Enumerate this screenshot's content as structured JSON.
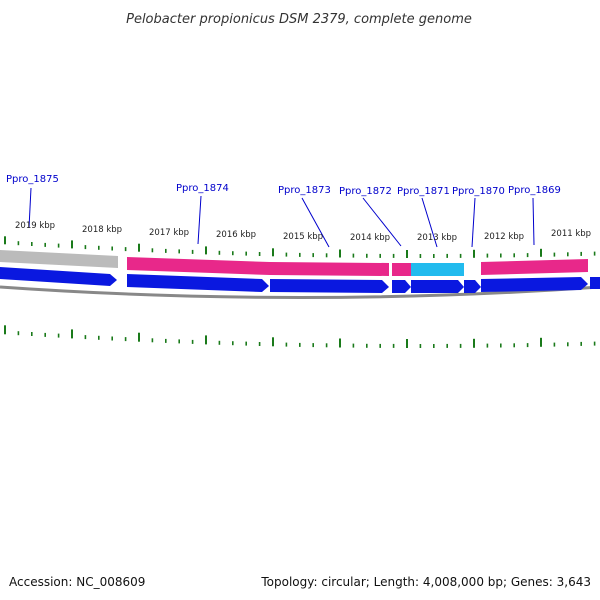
{
  "title": "Pelobacter propionicus DSM 2379, complete genome",
  "accession_label": "Accession: NC_008609",
  "summary_label": "Topology: circular; Length: 4,008,000 bp; Genes: 3,643",
  "colors": {
    "forward_cds": "#e8288a",
    "forward_cds_highlight": "#22bbee",
    "forward_gray": "#bbbbbb",
    "reverse_cds": "#0a18e0",
    "backbone": "#888888",
    "tick": "#1a7a1a",
    "leader": "#0000cc"
  },
  "kbp_ticks": [
    {
      "label": "2019 kbp"
    },
    {
      "label": "2018 kbp"
    },
    {
      "label": "2017 kbp"
    },
    {
      "label": "2016 kbp"
    },
    {
      "label": "2015 kbp"
    },
    {
      "label": "2014 kbp"
    },
    {
      "label": "2013 kbp"
    },
    {
      "label": "2012 kbp"
    },
    {
      "label": "2011 kbp"
    }
  ],
  "genes": [
    {
      "locus": "Ppro_1875"
    },
    {
      "locus": "Ppro_1874"
    },
    {
      "locus": "Ppro_1873"
    },
    {
      "locus": "Ppro_1872"
    },
    {
      "locus": "Ppro_1871"
    },
    {
      "locus": "Ppro_1870"
    },
    {
      "locus": "Ppro_1869"
    }
  ]
}
